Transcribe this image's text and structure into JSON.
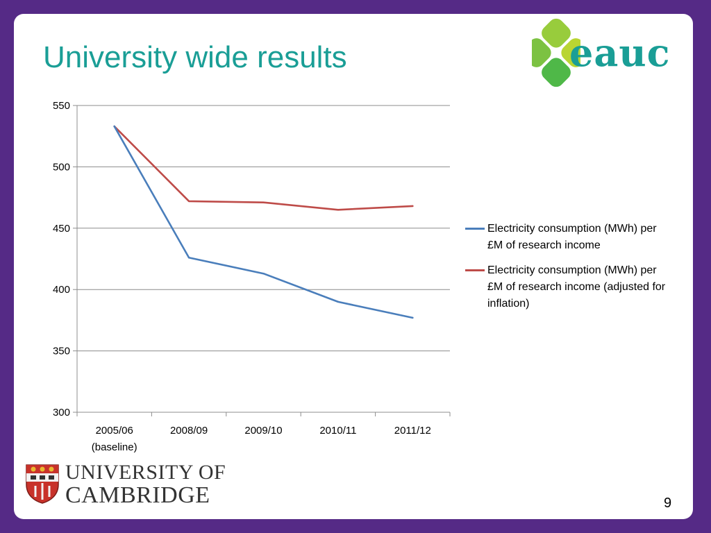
{
  "slide": {
    "title": "University wide results",
    "number": "9",
    "logos": {
      "eauc": "eauc",
      "university": [
        "UNIVERSITY OF",
        "CAMBRIDGE"
      ]
    }
  },
  "colors": {
    "background": "#552a86",
    "title": "#1a9e96",
    "series1": "#4a7ebb",
    "series2": "#be4b48"
  },
  "chart_data": {
    "type": "line",
    "categories": [
      "2005/06\n(baseline)",
      "2008/09",
      "2009/10",
      "2010/11",
      "2011/12"
    ],
    "series": [
      {
        "name": "Electricity consumption (MWh) per £M of research income",
        "color": "#4a7ebb",
        "values": [
          533,
          426,
          413,
          390,
          377
        ]
      },
      {
        "name": "Electricity consumption (MWh) per £M of research income (adjusted for inflation)",
        "color": "#be4b48",
        "values": [
          533,
          472,
          471,
          465,
          468
        ]
      }
    ],
    "title": "",
    "xlabel": "",
    "ylabel": "",
    "ylim": [
      300,
      550
    ],
    "yticks": [
      300,
      350,
      400,
      450,
      500,
      550
    ],
    "grid": true,
    "legend": "right"
  }
}
